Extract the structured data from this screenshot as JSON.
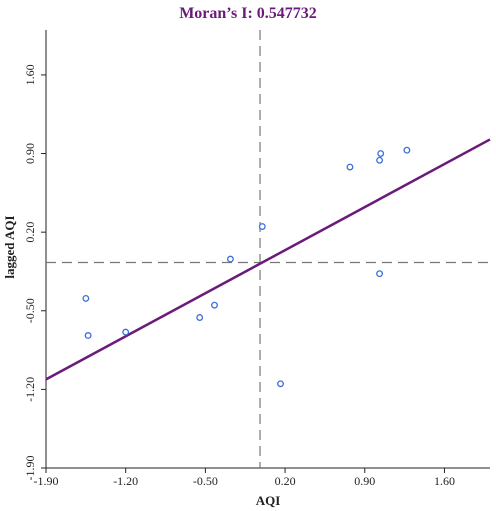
{
  "chart_data": {
    "type": "scatter",
    "title": "Moran’s I: 0.547732",
    "xlabel": "AQI",
    "ylabel": "lagged AQI",
    "xlim": [
      -1.9,
      2.0
    ],
    "ylim": [
      -1.9,
      2.0
    ],
    "x_ticks": [
      -1.9,
      -1.2,
      -0.5,
      0.2,
      0.9,
      1.6
    ],
    "x_tick_labels": [
      "-1.90",
      "-1.20",
      "-0.50",
      "0.20",
      "0.90",
      "1.60"
    ],
    "y_ticks": [
      -1.9,
      -1.2,
      -0.5,
      0.2,
      0.9,
      1.6
    ],
    "y_tick_labels": [
      "-1.90",
      "-1.20",
      "-0.50",
      "0.20",
      "0.90",
      "1.60"
    ],
    "points": [
      {
        "x": -1.55,
        "y": -0.39
      },
      {
        "x": -1.53,
        "y": -0.72
      },
      {
        "x": -1.2,
        "y": -0.69
      },
      {
        "x": -0.55,
        "y": -0.56
      },
      {
        "x": -0.42,
        "y": -0.45
      },
      {
        "x": -0.28,
        "y": -0.04
      },
      {
        "x": 0.0,
        "y": 0.25
      },
      {
        "x": 0.16,
        "y": -1.15
      },
      {
        "x": 0.77,
        "y": 0.78
      },
      {
        "x": 1.03,
        "y": 0.84
      },
      {
        "x": 1.04,
        "y": 0.9
      },
      {
        "x": 1.27,
        "y": 0.93
      },
      {
        "x": 1.03,
        "y": -0.17
      }
    ],
    "regression_line": {
      "slope": 0.547732,
      "intercept": -0.07
    },
    "reference_lines": {
      "x": -0.02,
      "y": -0.07
    },
    "colors": {
      "title": "#6a1b7a",
      "regression": "#6a1b7a",
      "points": "#3d6fd8",
      "axes": "#222222",
      "reference": "#777777"
    }
  }
}
